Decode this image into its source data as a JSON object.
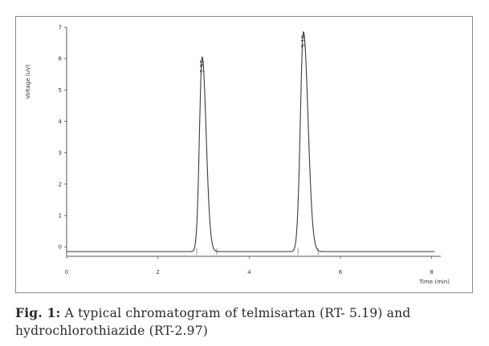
{
  "caption": {
    "lead": "Fig. 1:",
    "text": " A typical chromatogram of telmisartan (RT- 5.19) and hydrochlorothiazide (RT-2.97)"
  },
  "chart_data": {
    "type": "line",
    "xlabel": "Time (min)",
    "ylabel": "Voltage (uV)",
    "xlim": [
      0,
      8.2
    ],
    "ylim": [
      -0.3,
      7
    ],
    "x_ticks": [
      0,
      2,
      4,
      6,
      8
    ],
    "y_ticks": [
      0,
      1,
      2,
      3,
      4,
      5,
      6,
      7
    ],
    "baseline": -0.15,
    "peaks": [
      {
        "label": "2.97",
        "rt": 2.97,
        "height": 6.05,
        "width": 0.07
      },
      {
        "label": "5.19",
        "rt": 5.19,
        "height": 6.85,
        "width": 0.08
      }
    ],
    "series_color": "#3a3a3a"
  }
}
